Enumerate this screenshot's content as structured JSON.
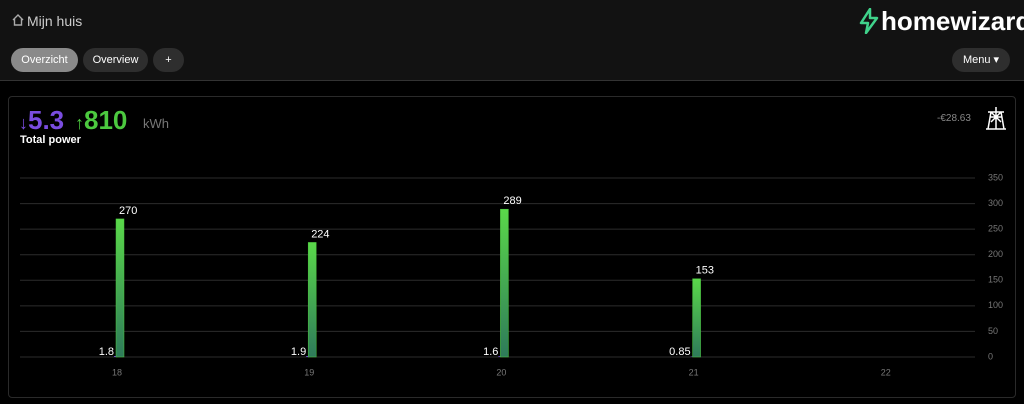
{
  "header": {
    "title": "Mijn huis",
    "logo": "homewizard",
    "tabs": [
      "Overzicht",
      "Overview",
      "+"
    ],
    "menu": "Menu"
  },
  "card": {
    "import": 5.3,
    "export": 810,
    "unit": "kWh",
    "label": "Total power",
    "cost": "-€28.63"
  },
  "chart_data": {
    "type": "bar",
    "categories": [
      "18",
      "19",
      "20",
      "21",
      "22"
    ],
    "series": [
      {
        "color": "#7a4de0",
        "values": [
          1.8,
          1.9,
          1.6,
          0.85,
          null
        ]
      },
      {
        "color": "#4cc93f",
        "values": [
          270,
          224,
          289,
          153,
          null
        ]
      }
    ],
    "ylim": [
      0,
      350
    ],
    "yticks": [
      0,
      50,
      100,
      150,
      200,
      250,
      300,
      350
    ],
    "grid": true
  }
}
